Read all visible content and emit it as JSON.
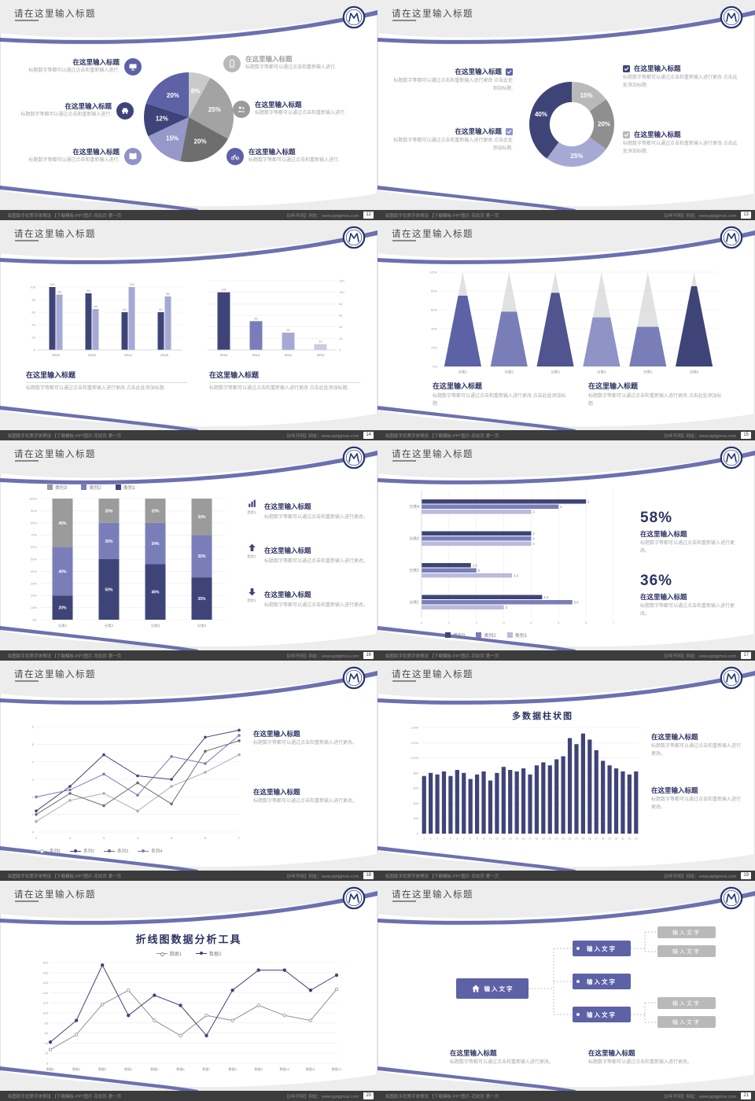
{
  "common": {
    "slide_title": "请在这里输入标题",
    "footer_left": "临图助手优质字体预设 【下载模板·PPT图片·花纹页·第一页",
    "footer_right": "【0年开网】网址：www.pptjgmos.com"
  },
  "palette": {
    "navy": "#3f4478",
    "purple": "#5d61a6",
    "mid_purple": "#7a7eb8",
    "light_purple": "#a6a9d4",
    "gray": "#9b9b9b",
    "light_gray": "#b9b9b9",
    "band_gray": "#ededed",
    "footer_bg": "#3c3c3c"
  },
  "s12": {
    "page": "12",
    "left_items": [
      {
        "title": "在这里输入标题",
        "body": "标题数字等都可以通过点击和重新输入进行.",
        "icon": "monitor",
        "icon_bg": "#5d61a6"
      },
      {
        "title": "在这里输入标题",
        "body": "标题数字等都可以通过点击和重新输入进行.",
        "icon": "car",
        "icon_bg": "#3f4478"
      },
      {
        "title": "在这里输入标题",
        "body": "标题数字等都可以通过点击和重新输入进行.",
        "icon": "book",
        "icon_bg": "#8f93c6"
      }
    ],
    "right_items": [
      {
        "title": "在这里输入标题",
        "body": "标题数字等都可以通过点击和重新输入进行.",
        "icon": "phone",
        "icon_bg": "#b9b9b9"
      },
      {
        "title": "在这里输入标题",
        "body": "标题数字等都可以通过点击和重新输入进行.",
        "icon": "people",
        "icon_bg": "#9b9b9b"
      },
      {
        "title": "在这里输入标题",
        "body": "标题数字等都可以通过点击和重新输入进行.",
        "icon": "bike",
        "icon_bg": "#5d61a6"
      }
    ]
  },
  "s13": {
    "page": "13",
    "left_items": [
      {
        "title": "在这里输入标题",
        "body": "标题数字等都可以通过点击和重新输入进行更改 点击此处添加标题.",
        "check": "#5d61a6"
      },
      {
        "title": "在这里输入标题",
        "body": "标题数字等都可以通过点击和重新输入进行更改 点击此处添加标题.",
        "check": "#8f93c6"
      }
    ],
    "right_items": [
      {
        "title": "在这里输入标题",
        "body": "标题数字等都可以通过点击和重新输入进行更改 点击此处添加标题.",
        "check": "#3f4478"
      },
      {
        "title": "在这里输入标题",
        "body": "标题数字等都可以通过点击和重新输入进行更改 点击此处添加标题.",
        "check": "#b9b9b9"
      }
    ]
  },
  "s14": {
    "page": "14",
    "blocks": [
      {
        "title": "在这里输入标题",
        "body": "标题数字等都可以通过点击和重新输入进行更改 点击此处添加标题."
      },
      {
        "title": "在这里输入标题",
        "body": "标题数字等都可以通过点击和重新输入进行更改 点击此处添加标题."
      }
    ]
  },
  "s15": {
    "page": "15",
    "blocks": [
      {
        "title": "在这里输入标题",
        "body": "标题数字等都可以通过点击和重新输入进行更改 点击此处添加标题."
      },
      {
        "title": "在这里输入标题",
        "body": "标题数字等都可以通过点击和重新输入进行更改 点击此处添加标题."
      }
    ]
  },
  "s16": {
    "page": "16",
    "items": [
      {
        "icon_label": "类别3",
        "title": "在这里输入标题",
        "body": "标题数字等都可以通过点击和重新输入进行更改。"
      },
      {
        "icon_label": "类别2",
        "title": "在这里输入标题",
        "body": "标题数字等都可以通过点击和重新输入进行更改。"
      },
      {
        "icon_label": "类别1",
        "title": "在这里输入标题",
        "body": "标题数字等都可以通过点击和重新输入进行更改。"
      }
    ]
  },
  "s17": {
    "page": "17",
    "blocks": [
      {
        "pct": "58%",
        "title": "在这里输入标题",
        "body": "标题数字等都可以通过点击和重新输入进行更改。"
      },
      {
        "pct": "36%",
        "title": "在这里输入标题",
        "body": "标题数字等都可以通过点击和重新输入进行更改。"
      }
    ]
  },
  "s18": {
    "page": "18",
    "blocks": [
      {
        "title": "在这里输入标题",
        "body": "标题数字等都可以通过点击和重新输入进行更改。"
      },
      {
        "title": "在这里输入标题",
        "body": "标题数字等都可以通过点击和重新输入进行更改。"
      }
    ]
  },
  "s19": {
    "page": "19",
    "blocks": [
      {
        "title": "在这里输入标题",
        "body": "标题数字等都可以通过点击和重新输入进行更改。"
      },
      {
        "title": "在这里输入标题",
        "body": "标题数字等都可以通过点击和重新输入进行更改。"
      }
    ]
  },
  "s20": {
    "page": "20"
  },
  "s21": {
    "page": "21",
    "home_label": "输入文字",
    "home_bg": "#5d61a6",
    "purple_bg": "#5d61a6",
    "gray_bg": "#b9b9b9",
    "purple_boxes": [
      "输入文字",
      "输入文字",
      "输入文字"
    ],
    "gray_boxes": [
      "输入文字",
      "输入文字",
      "输入文字",
      "输入文字"
    ],
    "blocks": [
      {
        "title": "在这里输入标题",
        "body": "标题数字等都可以通过点击和重新输入进行更改。"
      },
      {
        "title": "在这里输入标题",
        "body": "标题数字等都可以通过点击和重新输入进行更改。"
      }
    ]
  },
  "chart_data": [
    {
      "id": "pie12",
      "type": "pie",
      "r": 57,
      "labels": [
        "8%",
        "25%",
        "20%",
        "15%",
        "12%",
        "20%"
      ],
      "values": [
        8,
        25,
        20,
        15,
        12,
        20
      ],
      "colors": [
        "#c9c9c9",
        "#a3a3a3",
        "#6e6e6e",
        "#9598c9",
        "#3f4478",
        "#5d61a6"
      ]
    },
    {
      "id": "donut13",
      "type": "pie",
      "r": 54,
      "inner": 0.52,
      "labels": [
        "15%",
        "20%",
        "25%",
        "40%"
      ],
      "values": [
        15,
        20,
        25,
        40
      ],
      "colors": [
        "#b9b9b9",
        "#8f8f8f",
        "#a6a9d4",
        "#3f4478"
      ]
    },
    {
      "id": "bars14a",
      "type": "bar",
      "ymax": 110,
      "yticks": [
        0,
        20,
        40,
        60,
        80,
        100
      ],
      "bw": 8,
      "categories": [
        "2010",
        "2012",
        "2014",
        "2016"
      ],
      "series": [
        {
          "name": "类别1",
          "color": "#3f4478",
          "values": [
            100,
            90,
            60,
            60
          ]
        },
        {
          "name": "类别2",
          "color": "#a6a9d4",
          "values": [
            88,
            65,
            100,
            85
          ]
        }
      ]
    },
    {
      "id": "bars14b",
      "type": "bar",
      "ymax": 120,
      "yticks": [
        0,
        20,
        40,
        60,
        80,
        100,
        120
      ],
      "axis_right": true,
      "bw": 16,
      "categories": [
        "2016",
        "2014",
        "2012",
        "2010"
      ],
      "series": [
        {
          "name": "类别1",
          "colors": [
            "#3f4478",
            "#7a7eb8",
            "#a6a9d4",
            "#c9cbe4"
          ],
          "values": [
            100,
            50,
            30,
            10
          ]
        }
      ]
    },
    {
      "id": "cones15",
      "type": "cone",
      "top_color": "#dcdcdc",
      "yticks": [
        "0%",
        "20%",
        "40%",
        "60%",
        "80%",
        "100%"
      ],
      "categories": [
        "分类1",
        "分类2",
        "分类3",
        "分类4",
        "分类5",
        "分类6"
      ],
      "values": [
        75,
        58,
        78,
        52,
        42,
        85
      ],
      "colors": [
        "#5d61a6",
        "#7a7eb8",
        "#50548f",
        "#8f93c6",
        "#7a7eb8",
        "#3f4478"
      ]
    },
    {
      "id": "stack16",
      "type": "stacked_bar",
      "bw": 26,
      "yticks": [
        "0%",
        "10%",
        "20%",
        "30%",
        "40%",
        "50%",
        "60%",
        "70%",
        "80%",
        "90%",
        "100%"
      ],
      "categories": [
        "分类1",
        "分类2",
        "分类3",
        "分类4"
      ],
      "series": [
        {
          "name": "类别1",
          "color": "#3f4478",
          "values": [
            20,
            50,
            46,
            35
          ]
        },
        {
          "name": "类别2",
          "color": "#7a7eb8",
          "values": [
            40,
            30,
            34,
            35
          ]
        },
        {
          "name": "类别3",
          "color": "#9b9b9b",
          "values": [
            40,
            20,
            20,
            30
          ]
        }
      ],
      "legend": [
        {
          "label": "类别3",
          "color": "#9b9b9b"
        },
        {
          "label": "类别2",
          "color": "#7a7eb8"
        },
        {
          "label": "类别1",
          "color": "#3f4478"
        }
      ]
    },
    {
      "id": "hbar17",
      "type": "hbar",
      "xmax": 7,
      "xticks": [
        0,
        1,
        2,
        3,
        4,
        5,
        6,
        7
      ],
      "categories": [
        "分类4",
        "分类3",
        "分类2",
        "分类1"
      ],
      "series": [
        {
          "name": "类别3",
          "color": "#3f4478",
          "values": [
            6,
            4,
            1.8,
            4.4
          ]
        },
        {
          "name": "类别2",
          "color": "#7a7eb8",
          "values": [
            5,
            4,
            2,
            5.5
          ]
        },
        {
          "name": "类别1",
          "color": "#b9bbdd",
          "values": [
            4,
            4,
            3.3,
            3
          ]
        }
      ],
      "legend": [
        {
          "label": "类别3",
          "color": "#3f4478"
        },
        {
          "label": "类别2",
          "color": "#7a7eb8"
        },
        {
          "label": "类别1",
          "color": "#b9bbdd"
        }
      ]
    },
    {
      "id": "line18",
      "type": "line",
      "ymin": 0,
      "ymax": 6,
      "yticks": [
        0,
        1,
        2,
        3,
        4,
        5,
        6
      ],
      "x": [
        "1",
        "2",
        "3",
        "4",
        "5",
        "6",
        "7"
      ],
      "series": [
        {
          "name": "系列1",
          "color": "#b0b0b0",
          "values": [
            0.6,
            1.8,
            2.2,
            1.2,
            2.6,
            3.4,
            4.4
          ]
        },
        {
          "name": "系列2",
          "color": "#3f4478",
          "values": [
            1.2,
            2.6,
            4.4,
            3.2,
            3,
            5.4,
            5.8
          ]
        },
        {
          "name": "系列3",
          "color": "#6e6e6e",
          "values": [
            1,
            2.2,
            1.5,
            2.8,
            1.6,
            4.6,
            5.2
          ]
        },
        {
          "name": "系列4",
          "color": "#7a7eb8",
          "values": [
            2,
            2.4,
            3.3,
            2.1,
            4.3,
            3.9,
            5.5
          ]
        }
      ],
      "legend": [
        {
          "label": "系列1",
          "color": "#b0b0b0"
        },
        {
          "label": "系列2",
          "color": "#3f4478"
        },
        {
          "label": "系列3",
          "color": "#6e6e6e"
        },
        {
          "label": "系列4",
          "color": "#7a7eb8"
        }
      ]
    },
    {
      "id": "bars19",
      "type": "bar_many",
      "title": "多数据柱状图",
      "color": "#3f4478",
      "ymax": 1400,
      "yticks": [
        "0",
        "200",
        "400",
        "600",
        "800",
        "1,000",
        "1,200",
        "1,400"
      ],
      "xlabels": [
        "1",
        "2",
        "3",
        "4",
        "5",
        "6",
        "7",
        "8",
        "9",
        "10",
        "11",
        "12",
        "13",
        "14",
        "15",
        "16",
        "17",
        "18",
        "19",
        "20",
        "21",
        "22",
        "23",
        "24",
        "25",
        "26",
        "27",
        "28",
        "29",
        "30",
        "31",
        "32",
        "33"
      ],
      "values": [
        760,
        800,
        780,
        820,
        760,
        840,
        800,
        720,
        780,
        820,
        700,
        800,
        880,
        840,
        820,
        860,
        780,
        900,
        940,
        900,
        980,
        1020,
        1260,
        1180,
        1320,
        1240,
        1100,
        960,
        900,
        860,
        820,
        780,
        820
      ]
    },
    {
      "id": "line20",
      "type": "line",
      "title": "折线图数据分析工具",
      "ymin": 3,
      "ymax": 203,
      "ml": 24,
      "yticks": [
        3,
        23,
        43,
        63,
        83,
        103,
        123,
        143,
        163,
        183,
        203
      ],
      "x": [
        "数据1",
        "数据2",
        "数据3",
        "数据4",
        "数据5",
        "数据6",
        "数据7",
        "数据8",
        "数据9",
        "数据10",
        "数据11",
        "数据12"
      ],
      "series": [
        {
          "name": "数据1",
          "color": "#8f8f8f",
          "open": true,
          "r": 1.8,
          "values": [
            30,
            60,
            120,
            148,
            88,
            58,
            98,
            88,
            118,
            98,
            88,
            150
          ]
        },
        {
          "name": "数据2",
          "color": "#3f4478",
          "r": 1.8,
          "values": [
            45,
            88,
            198,
            98,
            138,
            118,
            58,
            148,
            188,
            188,
            148,
            178
          ]
        }
      ],
      "legend": [
        {
          "label": "数据1",
          "color": "#8f8f8f"
        },
        {
          "label": "数据2",
          "color": "#3f4478"
        }
      ]
    }
  ]
}
